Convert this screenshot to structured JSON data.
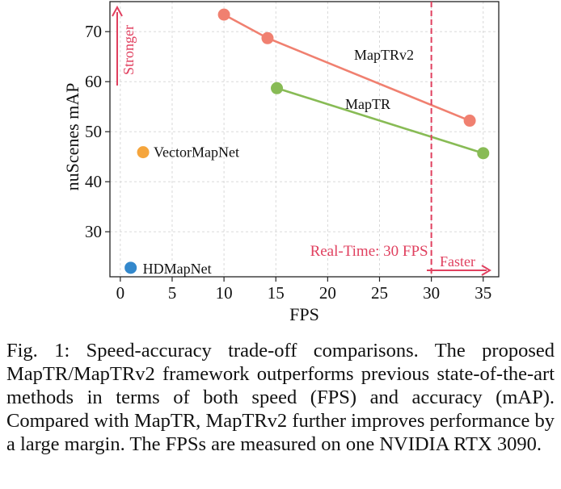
{
  "chart_data": {
    "type": "scatter",
    "xlabel": "FPS",
    "ylabel": "nuScenes mAP",
    "xlim": [
      -1,
      36.5
    ],
    "ylim": [
      21,
      76
    ],
    "xticks": [
      0,
      5,
      10,
      15,
      20,
      25,
      30,
      35
    ],
    "yticks": [
      30,
      40,
      50,
      60,
      70
    ],
    "grid": true,
    "series": [
      {
        "name": "MapTRv2",
        "color": "#f08070",
        "x": [
          10,
          14.2,
          33.7
        ],
        "y": [
          73.4,
          68.7,
          52.2
        ],
        "connected": true
      },
      {
        "name": "MapTR",
        "color": "#88bb55",
        "x": [
          15.1,
          35
        ],
        "y": [
          58.7,
          45.7
        ],
        "connected": true
      },
      {
        "name": "VectorMapNet",
        "color": "#f5a53c",
        "x": [
          2.2
        ],
        "y": [
          45.9
        ],
        "connected": false
      },
      {
        "name": "HDMapNet",
        "color": "#3388cc",
        "x": [
          1
        ],
        "y": [
          22.8
        ],
        "connected": false
      }
    ],
    "reference_line": {
      "x": 30,
      "label": "Real-Time: 30 FPS",
      "color": "#e0405f"
    },
    "annotations": {
      "stronger": "Stronger",
      "faster": "Faster",
      "accent_color": "#e0405f"
    }
  },
  "caption": "Fig. 1: Speed-accuracy trade-off comparisons. The proposed MapTR/MapTRv2 framework outperforms previous state-of-the-art methods in terms of both speed (FPS) and accuracy (mAP). Compared with MapTR, MapTRv2 further improves performance by a large margin. The FPSs are measured on one NVIDIA RTX 3090."
}
